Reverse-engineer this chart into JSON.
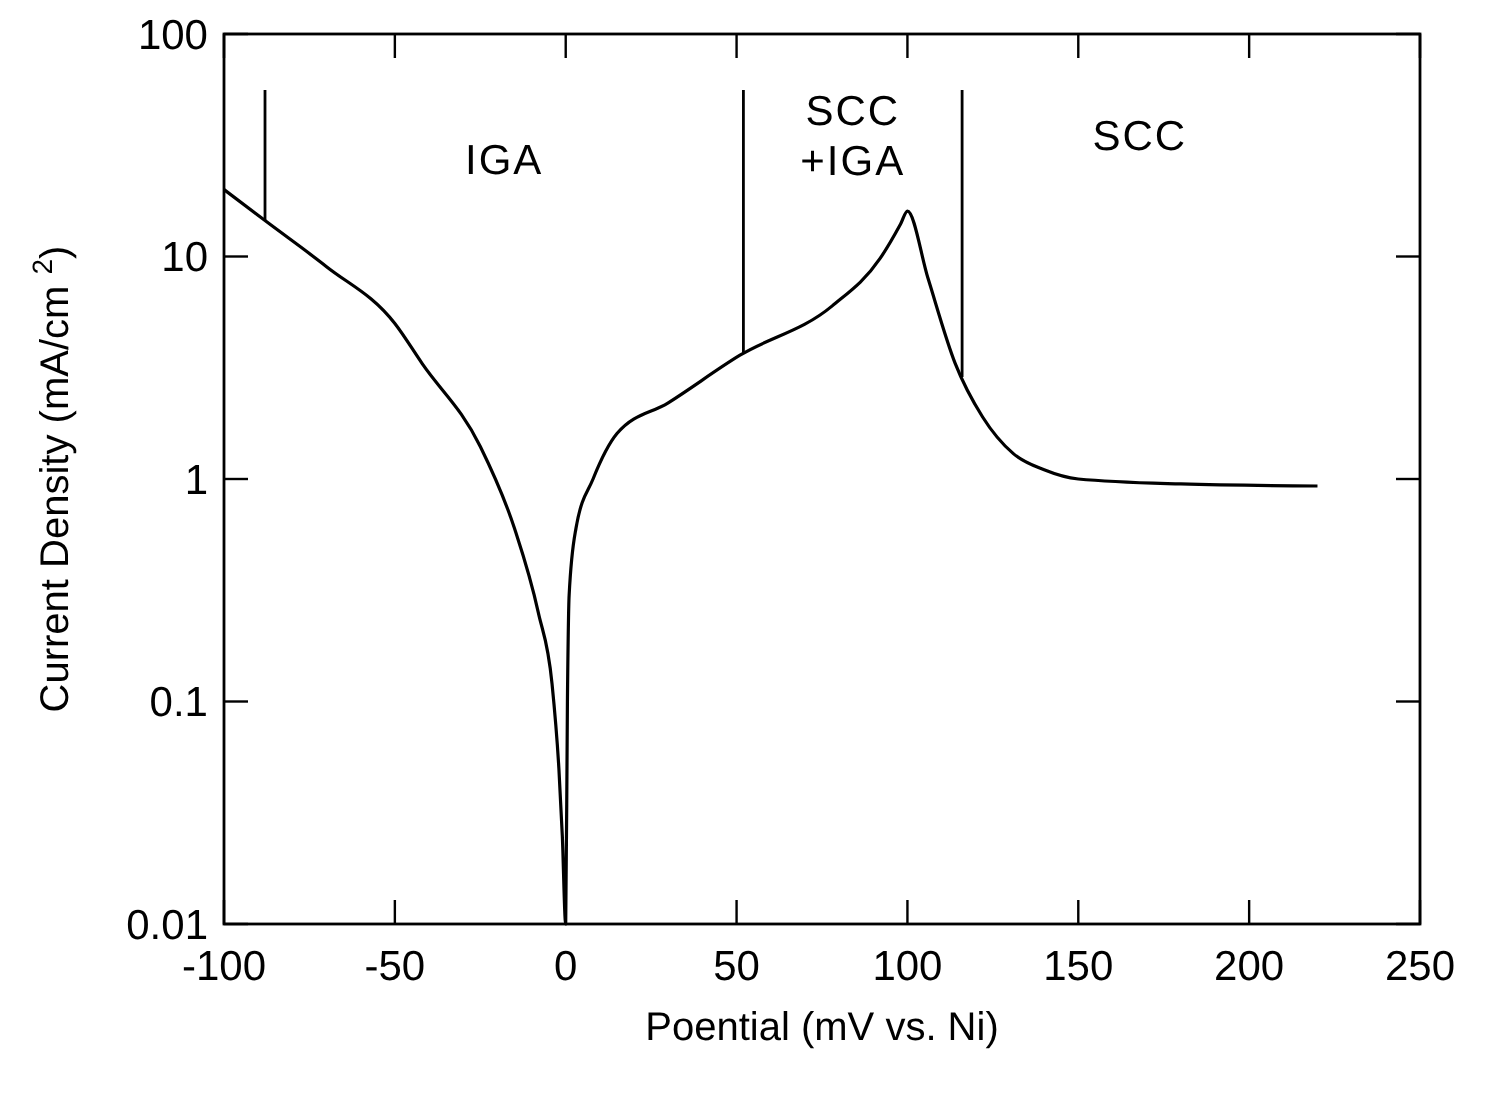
{
  "chart_data": {
    "type": "line",
    "xlabel": "Poential (mV vs. Ni)",
    "ylabel": "Current Density (mA/cm $^{2}$)",
    "log": "y",
    "xlim": [
      -100,
      250
    ],
    "ylim": [
      0.01,
      100
    ],
    "xticks": [
      -100,
      -50,
      0,
      50,
      100,
      150,
      200,
      250
    ],
    "yticks": [
      0.01,
      0.1,
      1,
      10,
      100
    ],
    "grid": false,
    "marker": "none",
    "line_style": "solid",
    "series": [
      {
        "color": "#000000",
        "x": [
          -100,
          -88,
          -70,
          -50,
          -42,
          -25,
          -15,
          -8,
          -4,
          -2,
          -1,
          0,
          0.5,
          1,
          3,
          8,
          15,
          30,
          51,
          78,
          92,
          98,
          100,
          106,
          114,
          122,
          131,
          140,
          150,
          180,
          220
        ],
        "values": [
          20,
          14.5,
          9,
          5,
          3.3,
          1.4,
          0.6,
          0.25,
          0.12,
          0.05,
          0.025,
          0.01,
          0.1,
          0.3,
          0.6,
          1.0,
          1.6,
          2.2,
          3.6,
          6,
          9.8,
          14,
          16,
          8,
          3.3,
          1.9,
          1.3,
          1.1,
          1.0,
          0.95,
          0.93
        ]
      }
    ],
    "ref_lines": [
      {
        "axis": "x",
        "value": -88,
        "color": "#000000"
      },
      {
        "axis": "x",
        "value": 52,
        "color": "#000000"
      },
      {
        "axis": "x",
        "value": 116,
        "color": "#000000"
      }
    ],
    "annotations": [
      "IGA",
      "SCC\n+IGA",
      "SCC"
    ]
  }
}
